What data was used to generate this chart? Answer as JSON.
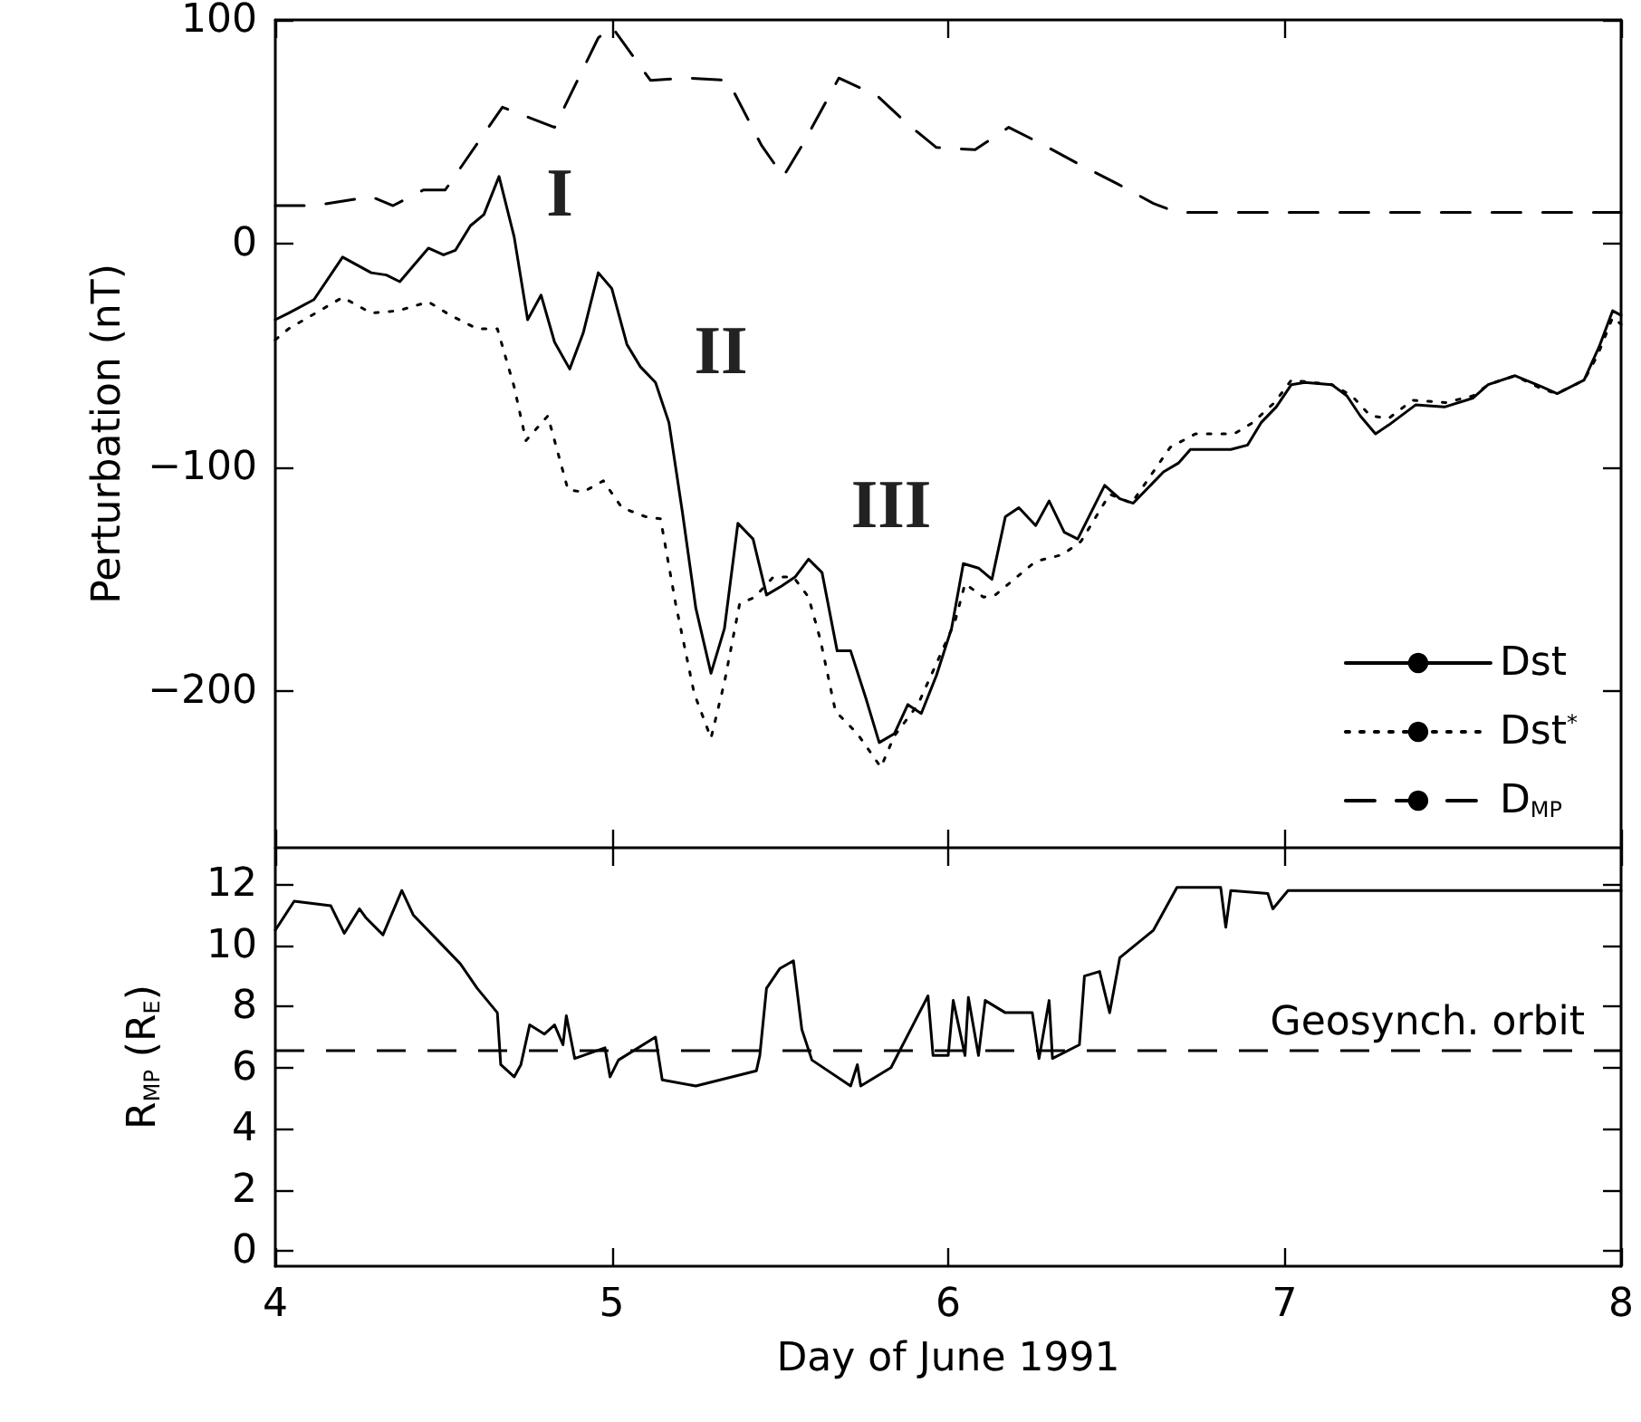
{
  "chart_data": [
    {
      "type": "line",
      "ylabel": "Perturbation (nT)",
      "xlim": [
        4,
        8
      ],
      "xticks": [
        4,
        5,
        6,
        7,
        8
      ],
      "ylim": [
        -270,
        100
      ],
      "yticks": [
        -200,
        -100,
        0,
        100
      ],
      "tick_labels": "y",
      "marker": "none",
      "grid": false,
      "legend": "bottom right",
      "annotations": [
        "I",
        "II",
        "III"
      ],
      "series": [
        {
          "name": "Dst",
          "color": "#000000",
          "line_style": "solid",
          "x": [
            4.0,
            4.04,
            4.115,
            4.2,
            4.285,
            4.33,
            4.37,
            4.455,
            4.5,
            4.535,
            4.58,
            4.62,
            4.665,
            4.71,
            4.75,
            4.79,
            4.83,
            4.875,
            4.915,
            4.96,
            5.0,
            5.045,
            5.085,
            5.13,
            5.17,
            5.21,
            5.25,
            5.295,
            5.335,
            5.375,
            5.42,
            5.46,
            5.505,
            5.545,
            5.585,
            5.625,
            5.67,
            5.71,
            5.755,
            5.795,
            5.84,
            5.88,
            5.92,
            5.965,
            6.01,
            6.045,
            6.09,
            6.13,
            6.17,
            6.21,
            6.26,
            6.3,
            6.345,
            6.385,
            6.465,
            6.51,
            6.55,
            6.64,
            6.685,
            6.72,
            6.84,
            6.89,
            6.93,
            6.975,
            7.02,
            7.06,
            7.14,
            7.185,
            7.225,
            7.27,
            7.31,
            7.39,
            7.475,
            7.56,
            7.605,
            7.685,
            7.765,
            7.81,
            7.89,
            7.935,
            7.975,
            8.0
          ],
          "values": [
            -34,
            -31,
            -25,
            -6,
            -13,
            -14,
            -17,
            -2,
            -5,
            -3,
            8,
            13,
            30,
            3,
            -34,
            -23,
            -44,
            -56,
            -40,
            -13,
            -20,
            -45,
            -55,
            -62,
            -80,
            -120,
            -163,
            -192,
            -172,
            -125,
            -132,
            -157,
            -153,
            -149,
            -141,
            -147,
            -182,
            -182,
            -203,
            -223,
            -219,
            -206,
            -210,
            -193,
            -172,
            -143,
            -145,
            -150,
            -122,
            -118,
            -126,
            -115,
            -129,
            -132,
            -108,
            -114,
            -116,
            -102,
            -98,
            -92,
            -92,
            -90,
            -80,
            -73,
            -63,
            -62,
            -63,
            -68,
            -77,
            -85,
            -81,
            -72,
            -73,
            -69,
            -63,
            -59,
            -64,
            -67,
            -61,
            -46,
            -30,
            -32
          ]
        },
        {
          "name": "Dst$^{*}$",
          "color": "#000000",
          "line_style": "dotted",
          "x": [
            4.0,
            4.04,
            4.2,
            4.285,
            4.365,
            4.455,
            4.52,
            4.6,
            4.66,
            4.71,
            4.745,
            4.81,
            4.87,
            4.915,
            4.975,
            5.03,
            5.1,
            5.145,
            5.19,
            5.245,
            5.295,
            5.335,
            5.38,
            5.425,
            5.48,
            5.54,
            5.585,
            5.62,
            5.665,
            5.73,
            5.8,
            5.84,
            5.91,
            5.97,
            6.02,
            6.05,
            6.105,
            6.14,
            6.26,
            6.34,
            6.395,
            6.48,
            6.545,
            6.66,
            6.735,
            6.85,
            6.905,
            6.97,
            7.02,
            7.14,
            7.2,
            7.255,
            7.31,
            7.38,
            7.48,
            7.56,
            7.605,
            7.685,
            7.765,
            7.81,
            7.89,
            7.93,
            7.975,
            8.0
          ],
          "values": [
            -43,
            -38,
            -24,
            -31,
            -30,
            -26,
            -32,
            -38,
            -38,
            -64,
            -88,
            -77,
            -110,
            -111,
            -106,
            -118,
            -122,
            -123,
            -161,
            -201,
            -221,
            -196,
            -161,
            -158,
            -149,
            -149,
            -158,
            -177,
            -209,
            -219,
            -234,
            -220,
            -206,
            -186,
            -169,
            -152,
            -158,
            -157,
            -142,
            -139,
            -133,
            -112,
            -116,
            -91,
            -85,
            -85,
            -80,
            -71,
            -61,
            -63,
            -68,
            -77,
            -78,
            -70,
            -71,
            -68,
            -63,
            -59,
            -65,
            -67,
            -61,
            -50,
            -33,
            -36
          ]
        },
        {
          "name": "D$_{MP}$",
          "color": "#000000",
          "line_style": "dashed",
          "x": [
            4.0,
            4.115,
            4.285,
            4.35,
            4.44,
            4.505,
            4.675,
            4.83,
            4.96,
            5.0,
            5.115,
            5.225,
            5.345,
            5.445,
            5.51,
            5.57,
            5.675,
            5.79,
            5.875,
            5.965,
            6.08,
            6.18,
            6.285,
            6.395,
            6.5,
            6.61,
            6.68,
            8.0
          ],
          "values": [
            17,
            17,
            21,
            17,
            24,
            24,
            61,
            52,
            92,
            97,
            73,
            74,
            73,
            44,
            30,
            45,
            74,
            66,
            54,
            43,
            42,
            52,
            44,
            35,
            27,
            18,
            14,
            14
          ]
        }
      ]
    },
    {
      "type": "line",
      "xlabel": "Day of June 1991",
      "ylabel": "R$_{MP}$ (R$_{E}$)",
      "xlim": [
        4,
        8
      ],
      "xticks": [
        4,
        5,
        6,
        7,
        8
      ],
      "ylim": [
        -0.5,
        13.2
      ],
      "yticks": [
        0,
        2,
        4,
        6,
        8,
        10,
        12
      ],
      "marker": "none",
      "grid": false,
      "ref_lines": [
        {
          "axis": "y",
          "value": 6.6,
          "label": "Geosynch. orbit",
          "color": "#000000",
          "line_style": "dashed"
        }
      ],
      "series": [
        {
          "color": "#000000",
          "line_style": "solid",
          "x": [
            4.0,
            4.056,
            4.165,
            4.205,
            4.25,
            4.27,
            4.32,
            4.376,
            4.41,
            4.55,
            4.6,
            4.66,
            4.67,
            4.71,
            4.73,
            4.756,
            4.8,
            4.83,
            4.855,
            4.865,
            4.89,
            4.98,
            4.995,
            5.02,
            5.13,
            5.15,
            5.25,
            5.43,
            5.44,
            5.46,
            5.5,
            5.54,
            5.565,
            5.595,
            5.71,
            5.73,
            5.74,
            5.83,
            5.94,
            5.955,
            6.0,
            6.015,
            6.05,
            6.06,
            6.09,
            6.11,
            6.17,
            6.25,
            6.27,
            6.3,
            6.31,
            6.39,
            6.405,
            6.45,
            6.48,
            6.51,
            6.61,
            6.68,
            6.81,
            6.825,
            6.84,
            6.95,
            6.965,
            7.01,
            8.0
          ],
          "values": [
            10.5,
            11.45,
            11.3,
            10.4,
            11.2,
            10.9,
            10.35,
            11.8,
            11.0,
            9.4,
            8.6,
            7.8,
            6.1,
            5.7,
            6.1,
            7.4,
            7.1,
            7.4,
            6.75,
            7.7,
            6.3,
            6.65,
            5.7,
            6.25,
            7.0,
            5.6,
            5.4,
            5.9,
            6.4,
            8.6,
            9.25,
            9.5,
            7.25,
            6.25,
            5.4,
            6.1,
            5.4,
            6.0,
            8.35,
            6.4,
            6.4,
            8.2,
            6.4,
            8.3,
            6.4,
            8.2,
            7.8,
            7.8,
            6.3,
            8.2,
            6.3,
            6.75,
            9.0,
            9.15,
            7.8,
            9.6,
            10.5,
            11.9,
            11.9,
            10.6,
            11.8,
            11.7,
            11.2,
            11.8,
            11.8
          ]
        }
      ]
    }
  ]
}
